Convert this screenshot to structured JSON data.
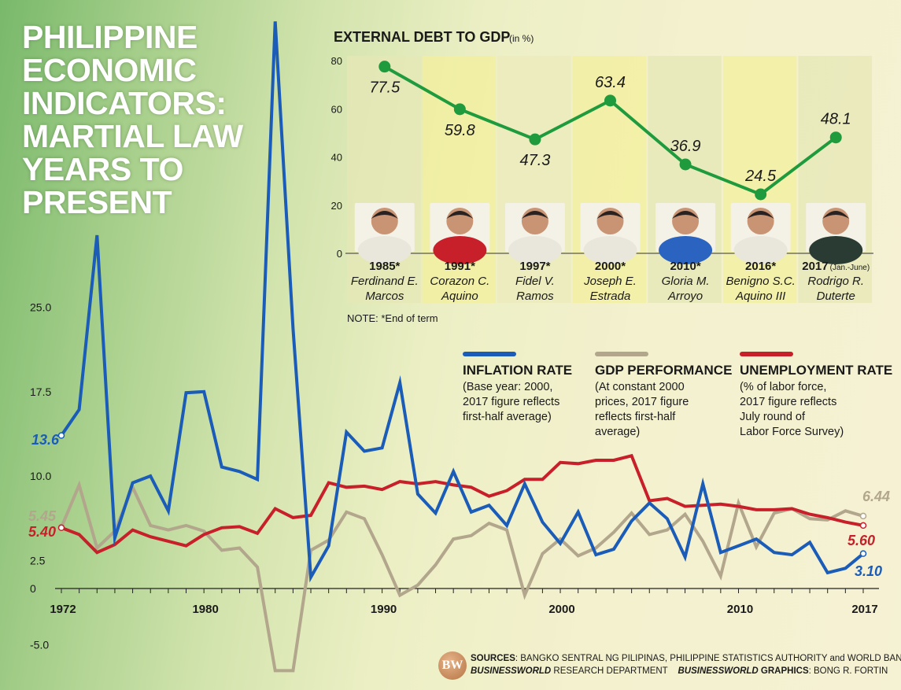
{
  "title_lines": [
    "PHILIPPINE",
    "ECONOMIC",
    "INDICATORS:",
    "MARTIAL LAW",
    "YEARS TO",
    "PRESENT"
  ],
  "legend": [
    {
      "key": "inflation",
      "title": "INFLATION RATE",
      "desc": "(Base year: 2000,\n2017 figure reflects\nfirst-half average)",
      "color": "#1a5cb8"
    },
    {
      "key": "gdp",
      "title": "GDP PERFORMANCE",
      "desc": "(At constant 2000\nprices, 2017 figure\nreflects first-half\naverage)",
      "color": "#b2a68c"
    },
    {
      "key": "unemployment",
      "title": "UNEMPLOYMENT RATE",
      "desc": "(% of labor force,\n2017 figure reflects\nJuly round of\nLabor Force Survey)",
      "color": "#c8202a"
    }
  ],
  "note": "NOTE: *End of term",
  "sources": {
    "label": "SOURCES",
    "text": ": BANGKO SENTRAL NG PILIPINAS, PHILIPPINE STATISTICS AUTHORITY and WORLD BANK",
    "dept_brand": "BUSINESSWORLD",
    "dept_text": " RESEARCH DEPARTMENT",
    "graphics_brand": "BUSINESSWORLD",
    "graphics_label": " GRAPHICS",
    "graphics_text": ": BONG R. FORTIN"
  },
  "logo_text": "BW",
  "chart_data": [
    {
      "type": "line",
      "title": "",
      "xlabel": "",
      "ylabel": "",
      "ylim": [
        -5.0,
        25.0
      ],
      "xlim": [
        1972,
        2017
      ],
      "y_ticks": [
        "25.0",
        "17.5",
        "10.0",
        "2.5",
        "0",
        "-5.0"
      ],
      "y_tick_values": [
        25.0,
        17.5,
        10.0,
        2.5,
        0,
        -5.0
      ],
      "x_ticks": [
        "1972",
        "1980",
        "1990",
        "2000",
        "2010",
        "2017"
      ],
      "x_tick_values": [
        1972,
        1980,
        1990,
        2000,
        2010,
        2017
      ],
      "x": [
        1972,
        1973,
        1974,
        1975,
        1976,
        1977,
        1978,
        1979,
        1980,
        1981,
        1982,
        1983,
        1984,
        1985,
        1986,
        1987,
        1988,
        1989,
        1990,
        1991,
        1992,
        1993,
        1994,
        1995,
        1996,
        1997,
        1998,
        1999,
        2000,
        2001,
        2002,
        2003,
        2004,
        2005,
        2006,
        2007,
        2008,
        2009,
        2010,
        2011,
        2012,
        2013,
        2014,
        2015,
        2016,
        2017
      ],
      "series": [
        {
          "name": "INFLATION RATE",
          "color": "#1a5cb8",
          "values": [
            13.6,
            15.9,
            31.4,
            4.5,
            9.4,
            10.0,
            6.9,
            17.4,
            17.5,
            10.8,
            10.4,
            9.7,
            50.4,
            23.1,
            1.0,
            3.8,
            13.9,
            12.2,
            12.5,
            18.3,
            8.4,
            6.7,
            10.4,
            6.8,
            7.4,
            5.6,
            9.3,
            5.9,
            4.0,
            6.8,
            3.0,
            3.5,
            6.0,
            7.6,
            6.2,
            2.8,
            9.3,
            3.2,
            3.8,
            4.4,
            3.2,
            3.0,
            4.1,
            1.4,
            1.8,
            3.1
          ],
          "labels": {
            "first": "13.6",
            "last": "3.10"
          }
        },
        {
          "name": "GDP PERFORMANCE",
          "color": "#b2a68c",
          "values": [
            5.45,
            9.2,
            3.6,
            5.1,
            9.0,
            5.6,
            5.2,
            5.6,
            5.1,
            3.4,
            3.6,
            1.9,
            -7.3,
            -7.3,
            3.4,
            4.3,
            6.8,
            6.2,
            3.0,
            -0.6,
            0.3,
            2.1,
            4.4,
            4.7,
            5.8,
            5.2,
            -0.6,
            3.1,
            4.4,
            2.9,
            3.6,
            5.0,
            6.7,
            4.8,
            5.2,
            6.6,
            4.2,
            1.1,
            7.6,
            3.7,
            6.7,
            7.1,
            6.2,
            6.1,
            6.9,
            6.44
          ],
          "labels": {
            "first": "5.45",
            "last": "6.44"
          }
        },
        {
          "name": "UNEMPLOYMENT RATE",
          "color": "#c8202a",
          "values": [
            5.4,
            4.8,
            3.2,
            3.9,
            5.2,
            4.6,
            4.2,
            3.8,
            4.8,
            5.4,
            5.5,
            4.9,
            7.1,
            6.3,
            6.5,
            9.4,
            9.0,
            9.1,
            8.8,
            9.5,
            9.3,
            9.5,
            9.2,
            9.0,
            8.2,
            8.7,
            9.7,
            9.7,
            11.2,
            11.1,
            11.4,
            11.4,
            11.8,
            7.8,
            8.0,
            7.3,
            7.4,
            7.5,
            7.3,
            7.0,
            7.0,
            7.1,
            6.6,
            6.3,
            5.9,
            5.6
          ],
          "labels": {
            "first": "5.40",
            "last": "5.60"
          }
        }
      ]
    },
    {
      "type": "line",
      "title": "EXTERNAL DEBT TO GDP",
      "unit": "(in %)",
      "xlabel": "",
      "ylabel": "",
      "ylim": [
        0,
        80
      ],
      "y_ticks": [
        "80",
        "60",
        "40",
        "20",
        "0"
      ],
      "y_tick_values": [
        80,
        60,
        40,
        20,
        0
      ],
      "categories": [
        {
          "year": "1985*",
          "year_suffix": "",
          "name_lines": [
            "Ferdinand E.",
            "Marcos"
          ]
        },
        {
          "year": "1991*",
          "year_suffix": "",
          "name_lines": [
            "Corazon C.",
            "Aquino"
          ]
        },
        {
          "year": "1997*",
          "year_suffix": "",
          "name_lines": [
            "Fidel V.",
            "Ramos"
          ]
        },
        {
          "year": "2000*",
          "year_suffix": "",
          "name_lines": [
            "Joseph E.",
            "Estrada"
          ]
        },
        {
          "year": "2010*",
          "year_suffix": "",
          "name_lines": [
            "Gloria M.",
            "Arroyo"
          ]
        },
        {
          "year": "2016*",
          "year_suffix": "",
          "name_lines": [
            "Benigno S.C.",
            "Aquino III"
          ]
        },
        {
          "year": "2017",
          "year_suffix": "(Jan.-June)",
          "name_lines": [
            "Rodrigo R.",
            "Duterte"
          ]
        }
      ],
      "series": [
        {
          "name": "",
          "color": "#1f9b3e",
          "values": [
            77.5,
            59.8,
            47.3,
            63.4,
            36.9,
            24.5,
            48.1
          ],
          "labels": [
            "77.5",
            "59.8",
            "47.3",
            "63.4",
            "36.9",
            "24.5",
            "48.1"
          ]
        }
      ]
    }
  ]
}
